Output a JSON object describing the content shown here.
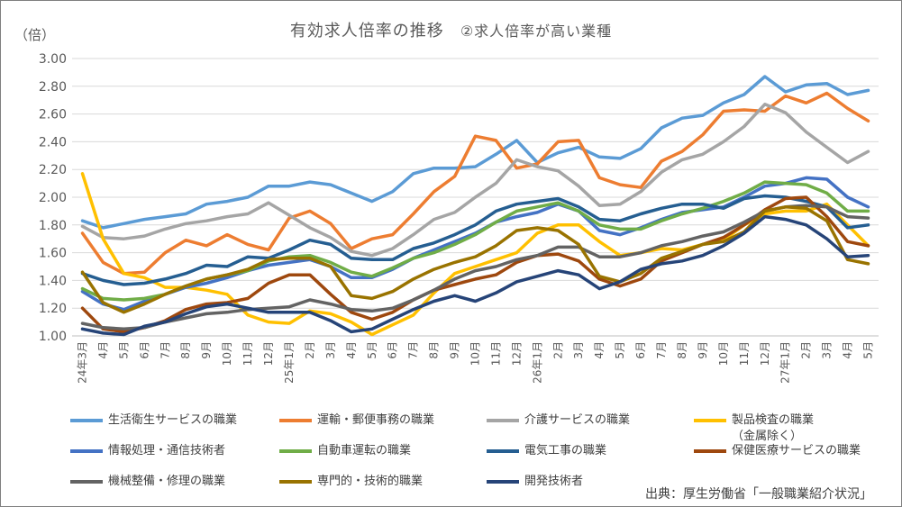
{
  "title": "有効求人倍率の推移",
  "subtitle": "②求人倍率が高い業種",
  "unit_label": "（倍）",
  "source": "出典：厚生労働省「一般職業紹介状況」",
  "chart_data": {
    "type": "line",
    "ylim": [
      1.0,
      3.0
    ],
    "yticks": [
      "1.00",
      "1.20",
      "1.40",
      "1.60",
      "1.80",
      "2.00",
      "2.20",
      "2.40",
      "2.60",
      "2.80",
      "3.00"
    ],
    "grid": true,
    "legend_position": "bottom",
    "x": [
      "24年3月",
      "4月",
      "5月",
      "6月",
      "7月",
      "8月",
      "9月",
      "10月",
      "11月",
      "12月",
      "25年1月",
      "2月",
      "3月",
      "4月",
      "5月",
      "6月",
      "7月",
      "8月",
      "9月",
      "10月",
      "11月",
      "12月",
      "26年1月",
      "2月",
      "3月",
      "4月",
      "5月",
      "6月",
      "7月",
      "8月",
      "9月",
      "10月",
      "11月",
      "12月",
      "27年1月",
      "2月",
      "3月",
      "4月",
      "5月"
    ],
    "series": [
      {
        "name": "生活衛生サービスの職業",
        "color": "#5b9bd5",
        "values": [
          1.83,
          1.78,
          1.81,
          1.84,
          1.86,
          1.88,
          1.95,
          1.97,
          2.0,
          2.08,
          2.08,
          2.11,
          2.09,
          2.03,
          1.97,
          2.04,
          2.17,
          2.21,
          2.21,
          2.22,
          2.31,
          2.41,
          2.25,
          2.32,
          2.36,
          2.29,
          2.28,
          2.35,
          2.5,
          2.57,
          2.59,
          2.68,
          2.74,
          2.87,
          2.76,
          2.81,
          2.82,
          2.74,
          2.77
        ]
      },
      {
        "name": "運輸・郵便事務の職業",
        "color": "#ed7d31",
        "values": [
          1.74,
          1.53,
          1.45,
          1.46,
          1.6,
          1.69,
          1.65,
          1.73,
          1.66,
          1.62,
          1.85,
          1.9,
          1.81,
          1.63,
          1.7,
          1.73,
          1.88,
          2.04,
          2.15,
          2.44,
          2.41,
          2.21,
          2.24,
          2.4,
          2.41,
          2.14,
          2.09,
          2.07,
          2.26,
          2.33,
          2.45,
          2.62,
          2.63,
          2.62,
          2.73,
          2.68,
          2.75,
          2.64,
          2.55
        ]
      },
      {
        "name": "介護サービスの職業",
        "color": "#a5a5a5",
        "values": [
          1.79,
          1.71,
          1.7,
          1.72,
          1.77,
          1.81,
          1.83,
          1.86,
          1.88,
          1.96,
          1.87,
          1.78,
          1.71,
          1.61,
          1.58,
          1.63,
          1.73,
          1.84,
          1.89,
          2.0,
          2.1,
          2.27,
          2.22,
          2.19,
          2.08,
          1.94,
          1.95,
          2.04,
          2.18,
          2.27,
          2.31,
          2.4,
          2.51,
          2.67,
          2.61,
          2.47,
          2.36,
          2.25,
          2.33
        ]
      },
      {
        "name": "製品検査の職業\n（金属除く）",
        "color": "#ffc000",
        "values": [
          2.17,
          1.7,
          1.45,
          1.42,
          1.35,
          1.35,
          1.33,
          1.3,
          1.15,
          1.1,
          1.09,
          1.18,
          1.16,
          1.1,
          1.01,
          1.08,
          1.15,
          1.31,
          1.45,
          1.5,
          1.55,
          1.6,
          1.74,
          1.8,
          1.8,
          1.68,
          1.58,
          1.6,
          1.63,
          1.62,
          1.66,
          1.69,
          1.8,
          1.88,
          1.9,
          1.9,
          1.95,
          1.8,
          1.65
        ]
      },
      {
        "name": "情報処理・通信技術者",
        "color": "#4472c4",
        "values": [
          1.32,
          1.23,
          1.19,
          1.25,
          1.3,
          1.35,
          1.38,
          1.42,
          1.47,
          1.51,
          1.53,
          1.55,
          1.5,
          1.42,
          1.42,
          1.48,
          1.56,
          1.62,
          1.68,
          1.74,
          1.82,
          1.86,
          1.89,
          1.95,
          1.9,
          1.76,
          1.73,
          1.78,
          1.84,
          1.89,
          1.91,
          1.93,
          2.0,
          2.08,
          2.1,
          2.14,
          2.13,
          2.0,
          1.93
        ]
      },
      {
        "name": "自動車運転の職業",
        "color": "#70ad47",
        "values": [
          1.34,
          1.27,
          1.26,
          1.27,
          1.3,
          1.36,
          1.41,
          1.44,
          1.47,
          1.54,
          1.57,
          1.58,
          1.53,
          1.46,
          1.43,
          1.49,
          1.56,
          1.6,
          1.66,
          1.73,
          1.82,
          1.9,
          1.93,
          1.96,
          1.9,
          1.8,
          1.77,
          1.77,
          1.83,
          1.88,
          1.92,
          1.97,
          2.03,
          2.11,
          2.1,
          2.09,
          2.03,
          1.9,
          1.9
        ]
      },
      {
        "name": "電気工事の職業",
        "color": "#255e91",
        "values": [
          1.45,
          1.4,
          1.37,
          1.38,
          1.41,
          1.45,
          1.51,
          1.5,
          1.57,
          1.56,
          1.62,
          1.69,
          1.66,
          1.56,
          1.55,
          1.55,
          1.63,
          1.67,
          1.73,
          1.8,
          1.9,
          1.95,
          1.97,
          1.99,
          1.93,
          1.84,
          1.83,
          1.88,
          1.92,
          1.95,
          1.95,
          1.92,
          1.99,
          2.01,
          2.0,
          1.97,
          1.93,
          1.78,
          1.8
        ]
      },
      {
        "name": "保健医療サービスの職業",
        "color": "#9e480e",
        "values": [
          1.2,
          1.05,
          1.03,
          1.06,
          1.11,
          1.19,
          1.23,
          1.24,
          1.27,
          1.38,
          1.44,
          1.44,
          1.3,
          1.17,
          1.12,
          1.17,
          1.26,
          1.33,
          1.37,
          1.41,
          1.44,
          1.53,
          1.58,
          1.59,
          1.54,
          1.41,
          1.36,
          1.41,
          1.54,
          1.6,
          1.66,
          1.71,
          1.8,
          1.91,
          1.99,
          2.0,
          1.86,
          1.68,
          1.65
        ]
      },
      {
        "name": "機械整備・修理の職業",
        "color": "#636363",
        "values": [
          1.09,
          1.06,
          1.05,
          1.06,
          1.1,
          1.13,
          1.16,
          1.17,
          1.19,
          1.2,
          1.21,
          1.26,
          1.23,
          1.19,
          1.18,
          1.2,
          1.26,
          1.33,
          1.41,
          1.47,
          1.5,
          1.55,
          1.58,
          1.64,
          1.64,
          1.57,
          1.57,
          1.6,
          1.65,
          1.68,
          1.72,
          1.75,
          1.82,
          1.9,
          1.93,
          1.94,
          1.93,
          1.86,
          1.85
        ]
      },
      {
        "name": "専門的・技術的職業",
        "color": "#997300",
        "values": [
          1.46,
          1.24,
          1.17,
          1.23,
          1.3,
          1.36,
          1.41,
          1.44,
          1.48,
          1.55,
          1.56,
          1.56,
          1.5,
          1.29,
          1.27,
          1.32,
          1.41,
          1.48,
          1.53,
          1.57,
          1.65,
          1.76,
          1.78,
          1.76,
          1.66,
          1.43,
          1.39,
          1.45,
          1.56,
          1.61,
          1.66,
          1.68,
          1.75,
          1.9,
          1.93,
          1.92,
          1.83,
          1.55,
          1.52
        ]
      },
      {
        "name": "開発技術者",
        "color": "#264478",
        "values": [
          1.05,
          1.02,
          1.01,
          1.07,
          1.1,
          1.16,
          1.21,
          1.23,
          1.2,
          1.17,
          1.17,
          1.17,
          1.11,
          1.03,
          1.05,
          1.12,
          1.19,
          1.25,
          1.29,
          1.25,
          1.31,
          1.39,
          1.43,
          1.47,
          1.44,
          1.34,
          1.39,
          1.48,
          1.52,
          1.54,
          1.58,
          1.65,
          1.74,
          1.86,
          1.84,
          1.8,
          1.7,
          1.57,
          1.58
        ]
      }
    ]
  }
}
